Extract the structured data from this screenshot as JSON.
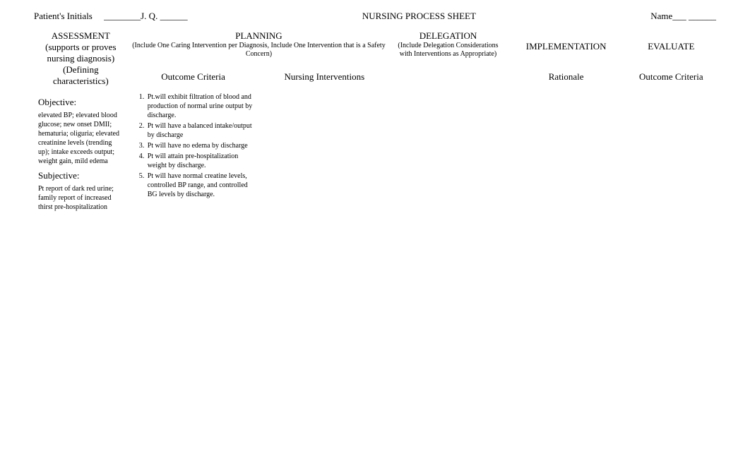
{
  "header": {
    "patient_label": "Patient's Initials",
    "patient_blank": "________J. Q. ______",
    "title": "NURSING PROCESS SHEET",
    "name_label": "Name___ ______"
  },
  "columns": {
    "assessment": {
      "title": "ASSESSMENT",
      "sub1": "(supports or proves nursing diagnosis)",
      "sub2": "(Defining characteristics)"
    },
    "planning": {
      "title": "PLANNING",
      "subtitle": "(Include One Caring Intervention per Diagnosis, Include One Intervention that is a Safety Concern)",
      "outcome_header": "Outcome Criteria",
      "interventions_header": "Nursing Interventions"
    },
    "delegation": {
      "title": "DELEGATION",
      "subtitle": "(Include Delegation Considerations with Interventions as Appropriate)"
    },
    "implementation": {
      "title": "IMPLEMENTATION",
      "rationale_header": "Rationale"
    },
    "evaluate": {
      "title": "EVALUATE",
      "outcome_header": "Outcome Criteria"
    }
  },
  "assessment": {
    "objective_label": "Objective:",
    "objective_text": "elevated BP; elevated blood glucose; new onset DMII; hematuria; oliguria; elevated creatinine levels (trending up); intake exceeds output; weight gain, mild edema",
    "subjective_label": "Subjective:",
    "subjective_text": "Pt report of dark red urine; family report of increased thirst pre-hospitalization"
  },
  "outcomes": {
    "item1": "Pt.will exhibit filtration of blood and production of normal urine output by discharge.",
    "item2": "Pt will have a balanced intake/output by discharge",
    "item3": "Pt will have no edema by discharge",
    "item4": "Pt will attain pre-hospitalization weight by discharge.",
    "item5": "Pt will have normal creatine levels, controlled BP range, and controlled BG levels by discharge."
  },
  "styles": {
    "background_color": "#ffffff",
    "text_color": "#000000",
    "font_family": "Times New Roman",
    "header_fontsize": 13,
    "body_fontsize": 10
  }
}
